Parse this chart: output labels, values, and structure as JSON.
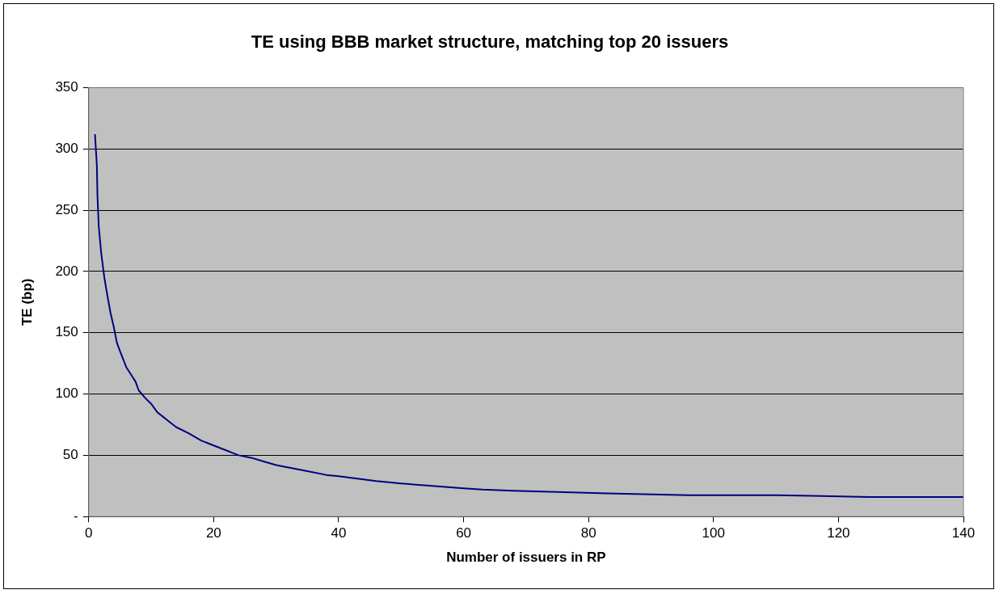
{
  "chart_data": {
    "type": "line",
    "title": "TE using BBB market structure, matching top 20 issuers",
    "xlabel": "Number of issuers in RP",
    "ylabel": "TE (bp)",
    "x": [
      1,
      1.3,
      1.4,
      1.6,
      2,
      2.5,
      3,
      3.5,
      4,
      4.5,
      5,
      6,
      7,
      7.5,
      8,
      9,
      10,
      11,
      12,
      13,
      14,
      16,
      18,
      20,
      22,
      23,
      24,
      26,
      28,
      30,
      32,
      35,
      38,
      40,
      43,
      46,
      50,
      55,
      60,
      63,
      68,
      75,
      83,
      96,
      110,
      125,
      140
    ],
    "series": [
      {
        "color": "#000080",
        "values": [
          312,
          287,
          262,
          237,
          215,
          195,
          180,
          166,
          155,
          142,
          135,
          122,
          114,
          110,
          103,
          97,
          92,
          85,
          81,
          77,
          73,
          68,
          62,
          58,
          54,
          52,
          50,
          48,
          45,
          42,
          40,
          37,
          34,
          33,
          31,
          29,
          27,
          25,
          23,
          22,
          21,
          20,
          19,
          17.5,
          17.5,
          16,
          16
        ]
      }
    ],
    "xlim": [
      0,
      140
    ],
    "xticks": [
      0,
      20,
      40,
      60,
      80,
      100,
      120,
      140
    ],
    "ylim": [
      0,
      350
    ],
    "yticks": [
      {
        "value": 0,
        "label": "-"
      },
      50,
      100,
      150,
      200,
      250,
      300,
      350
    ],
    "grid": "y",
    "legend": false,
    "marker": "none",
    "line_style": "solid"
  }
}
